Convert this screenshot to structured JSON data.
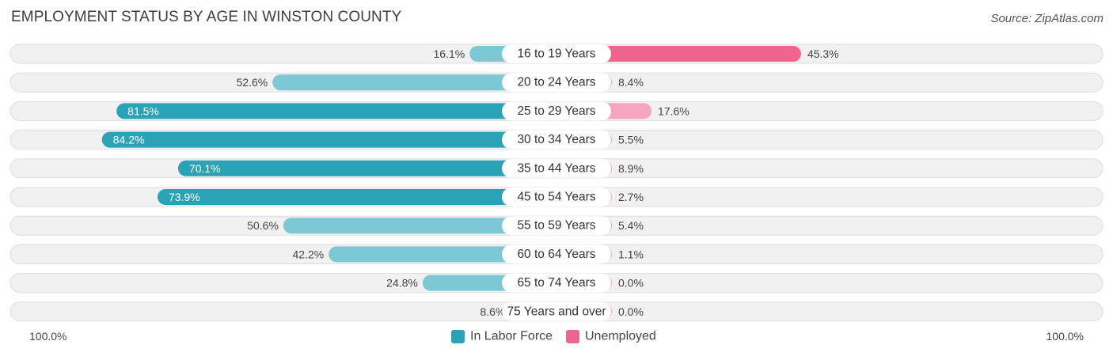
{
  "header": {
    "title": "EMPLOYMENT STATUS BY AGE IN WINSTON COUNTY",
    "source": "Source: ZipAtlas.com"
  },
  "colors": {
    "labor_force": "#2ba3b7",
    "labor_force_light": "#7cc8d4",
    "unemployed": "#f06590",
    "unemployed_light": "#f5a5bf"
  },
  "chart_data": {
    "type": "bar",
    "title": "EMPLOYMENT STATUS BY AGE IN WINSTON COUNTY",
    "orientation": "horizontal-diverging",
    "categories": [
      "16 to 19 Years",
      "20 to 24 Years",
      "25 to 29 Years",
      "30 to 34 Years",
      "35 to 44 Years",
      "45 to 54 Years",
      "55 to 59 Years",
      "60 to 64 Years",
      "65 to 74 Years",
      "75 Years and over"
    ],
    "series": [
      {
        "name": "In Labor Force",
        "values": [
          16.1,
          52.6,
          81.5,
          84.2,
          70.1,
          73.9,
          50.6,
          42.2,
          24.8,
          8.6
        ],
        "labels": [
          "16.1%",
          "52.6%",
          "81.5%",
          "84.2%",
          "70.1%",
          "73.9%",
          "50.6%",
          "42.2%",
          "24.8%",
          "8.6%"
        ]
      },
      {
        "name": "Unemployed",
        "values": [
          45.3,
          8.4,
          17.6,
          5.5,
          8.9,
          2.7,
          5.4,
          1.1,
          0.0,
          0.0
        ],
        "labels": [
          "45.3%",
          "8.4%",
          "17.6%",
          "5.5%",
          "8.9%",
          "2.7%",
          "5.4%",
          "1.1%",
          "0.0%",
          "0.0%"
        ]
      }
    ],
    "xlim": [
      0,
      100
    ],
    "axis_labels": {
      "left": "100.0%",
      "right": "100.0%"
    },
    "legend": {
      "position": "bottom-center",
      "entries": [
        "In Labor Force",
        "Unemployed"
      ]
    }
  }
}
